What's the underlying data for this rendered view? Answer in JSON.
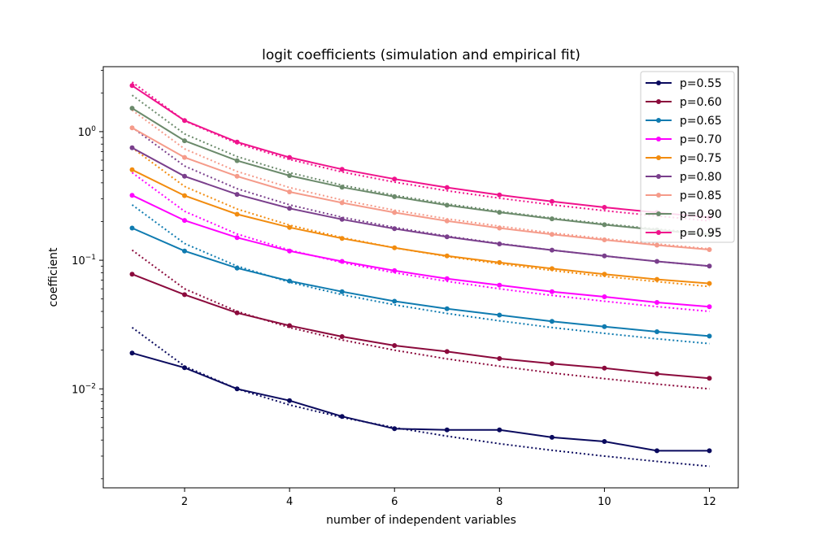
{
  "chart_data": {
    "type": "line",
    "title": "logit coefficients (simulation and empirical fit)",
    "xlabel": "number of independent variables",
    "ylabel": "coefficient",
    "xlim": [
      0.45,
      12.55
    ],
    "ylim": [
      0.0017,
      3.2
    ],
    "yscale": "log",
    "grid": false,
    "legend_position": "top-right",
    "x_ticks": [
      2,
      4,
      6,
      8,
      10,
      12
    ],
    "x_tick_labels": [
      "2",
      "4",
      "6",
      "8",
      "10",
      "12"
    ],
    "y_ticks": [
      0.01,
      0.1,
      1
    ],
    "y_tick_labels": [
      {
        "base": "10",
        "exp": "−2"
      },
      {
        "base": "10",
        "exp": "−1"
      },
      {
        "base": "10",
        "exp": "0"
      }
    ],
    "x": [
      1,
      2,
      3,
      4,
      5,
      6,
      7,
      8,
      9,
      10,
      11,
      12
    ],
    "series": [
      {
        "name": "p=0.55",
        "color": "#0a0a5e",
        "values": [
          0.019,
          0.0146,
          0.01,
          0.0081,
          0.0061,
          0.0049,
          0.0048,
          0.0048,
          0.0042,
          0.0039,
          0.0033,
          0.0033
        ],
        "fit": [
          0.03,
          0.015,
          0.01,
          0.0075,
          0.006,
          0.005,
          0.00429,
          0.00375,
          0.00333,
          0.003,
          0.00273,
          0.0025
        ]
      },
      {
        "name": "p=0.60",
        "color": "#8b0a3c",
        "values": [
          0.078,
          0.054,
          0.039,
          0.031,
          0.0255,
          0.0217,
          0.0195,
          0.0172,
          0.0157,
          0.0145,
          0.0131,
          0.0121
        ],
        "fit": [
          0.12,
          0.06,
          0.04,
          0.03,
          0.024,
          0.02,
          0.0171,
          0.015,
          0.0133,
          0.012,
          0.0109,
          0.01
        ]
      },
      {
        "name": "p=0.65",
        "color": "#0f7bb0",
        "values": [
          0.178,
          0.118,
          0.087,
          0.069,
          0.057,
          0.048,
          0.042,
          0.0375,
          0.0335,
          0.0305,
          0.0278,
          0.0257
        ],
        "fit": [
          0.27,
          0.135,
          0.09,
          0.0675,
          0.054,
          0.045,
          0.0386,
          0.0338,
          0.03,
          0.027,
          0.0245,
          0.0225
        ]
      },
      {
        "name": "p=0.70",
        "color": "#ff00ff",
        "values": [
          0.32,
          0.204,
          0.15,
          0.118,
          0.098,
          0.083,
          0.072,
          0.064,
          0.057,
          0.052,
          0.047,
          0.0435
        ],
        "fit": [
          0.48,
          0.24,
          0.16,
          0.12,
          0.096,
          0.08,
          0.0686,
          0.06,
          0.0533,
          0.048,
          0.0436,
          0.04
        ]
      },
      {
        "name": "p=0.75",
        "color": "#f28c0f",
        "values": [
          0.505,
          0.318,
          0.228,
          0.18,
          0.148,
          0.125,
          0.108,
          0.096,
          0.086,
          0.078,
          0.071,
          0.066
        ],
        "fit": [
          0.75,
          0.375,
          0.25,
          0.1875,
          0.15,
          0.125,
          0.107,
          0.0938,
          0.0833,
          0.075,
          0.0682,
          0.0625
        ]
      },
      {
        "name": "p=0.80",
        "color": "#7a3f8c",
        "values": [
          0.75,
          0.45,
          0.325,
          0.253,
          0.208,
          0.176,
          0.152,
          0.134,
          0.12,
          0.108,
          0.098,
          0.09
        ],
        "fit": [
          1.08,
          0.54,
          0.36,
          0.27,
          0.216,
          0.18,
          0.154,
          0.135,
          0.12,
          0.108,
          0.098,
          0.09
        ]
      },
      {
        "name": "p=0.85",
        "color": "#f59b8a",
        "values": [
          1.07,
          0.63,
          0.45,
          0.34,
          0.28,
          0.235,
          0.202,
          0.178,
          0.159,
          0.144,
          0.131,
          0.121
        ],
        "fit": [
          1.47,
          0.735,
          0.49,
          0.3675,
          0.294,
          0.245,
          0.21,
          0.184,
          0.163,
          0.147,
          0.134,
          0.1225
        ]
      },
      {
        "name": "p=0.90",
        "color": "#6b8a6b",
        "values": [
          1.52,
          0.85,
          0.595,
          0.455,
          0.37,
          0.312,
          0.268,
          0.236,
          0.21,
          0.189,
          0.172,
          0.158
        ],
        "fit": [
          1.92,
          0.96,
          0.64,
          0.48,
          0.384,
          0.32,
          0.274,
          0.24,
          0.213,
          0.192,
          0.175,
          0.16
        ]
      },
      {
        "name": "p=0.95",
        "color": "#f0128c",
        "values": [
          2.28,
          1.22,
          0.83,
          0.63,
          0.51,
          0.428,
          0.368,
          0.322,
          0.287,
          0.258,
          0.235,
          0.215
        ],
        "fit": [
          2.43,
          1.215,
          0.81,
          0.6075,
          0.486,
          0.405,
          0.347,
          0.304,
          0.27,
          0.243,
          0.221,
          0.2025
        ]
      }
    ]
  }
}
